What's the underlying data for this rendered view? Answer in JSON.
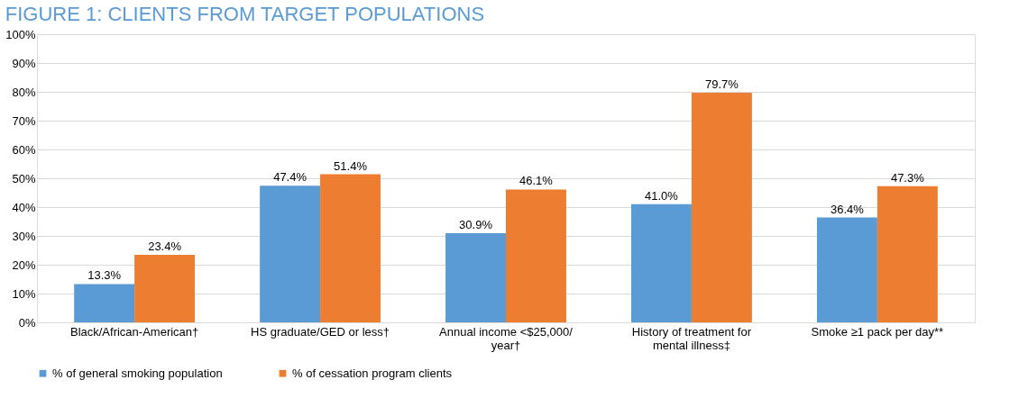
{
  "chart_data": {
    "type": "bar",
    "title": "FIGURE 1: CLIENTS FROM TARGET POPULATIONS",
    "categories": [
      "Black/African-American†",
      "HS graduate/GED or less†",
      "Annual income <$25,000/ year†",
      "History of treatment for mental illness‡",
      "Smoke ≥1 pack per day**"
    ],
    "series": [
      {
        "name": "% of general smoking population",
        "color": "#5b9bd5",
        "values": [
          13.3,
          47.4,
          30.9,
          41.0,
          36.4
        ],
        "value_labels": [
          "13.3%",
          "47.4%",
          "30.9%",
          "41.0%",
          "36.4%"
        ]
      },
      {
        "name": "% of cessation program clients",
        "color": "#ed7d31",
        "values": [
          23.4,
          51.4,
          46.1,
          79.7,
          47.3
        ],
        "value_labels": [
          "23.4%",
          "51.4%",
          "46.1%",
          "79.7%",
          "47.3%"
        ]
      }
    ],
    "ylim": [
      0,
      100
    ],
    "yticks": [
      {
        "value": 0,
        "label": "0%"
      },
      {
        "value": 10,
        "label": "10%"
      },
      {
        "value": 20,
        "label": "20%"
      },
      {
        "value": 30,
        "label": "30%"
      },
      {
        "value": 40,
        "label": "40%"
      },
      {
        "value": 50,
        "label": "50%"
      },
      {
        "value": 60,
        "label": "60%"
      },
      {
        "value": 70,
        "label": "70%"
      },
      {
        "value": 80,
        "label": "80%"
      },
      {
        "value": 90,
        "label": "90%"
      },
      {
        "value": 100,
        "label": "100%"
      }
    ],
    "grid": "y",
    "legend": "bottom"
  }
}
